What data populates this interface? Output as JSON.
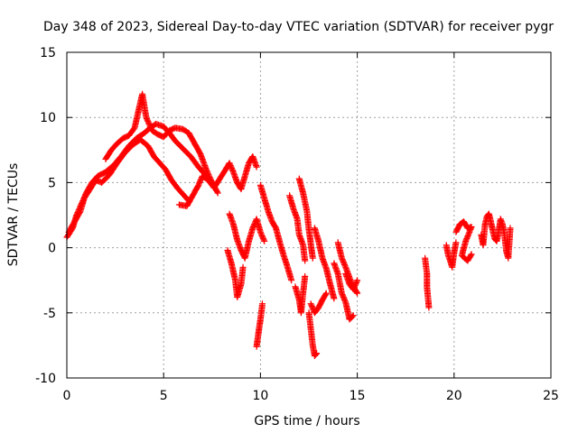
{
  "chart_data": {
    "type": "scatter",
    "title": "Day 348 of 2023, Sidereal Day-to-day VTEC variation (SDTVAR) for receiver pygr",
    "xlabel": "GPS time / hours",
    "ylabel": "SDTVAR / TECUs",
    "xlim": [
      0,
      25
    ],
    "ylim": [
      -10,
      15
    ],
    "xticks": [
      "0",
      "5",
      "10",
      "15",
      "20",
      "25"
    ],
    "yticks": [
      "-10",
      "-5",
      "0",
      "5",
      "10",
      "15"
    ],
    "grid": true,
    "marker": "+",
    "color": "#ff0000",
    "series": [
      {
        "name": "SDTVAR",
        "segments": [
          [
            [
              0.0,
              0.8
            ],
            [
              0.3,
              1.5
            ],
            [
              0.5,
              2.5
            ],
            [
              0.8,
              3.5
            ],
            [
              1.0,
              4.2
            ],
            [
              1.3,
              5.0
            ],
            [
              1.6,
              5.5
            ],
            [
              2.0,
              5.8
            ],
            [
              2.4,
              6.3
            ],
            [
              2.8,
              7.0
            ],
            [
              3.2,
              7.8
            ],
            [
              3.6,
              8.4
            ],
            [
              4.0,
              8.8
            ],
            [
              4.3,
              9.2
            ],
            [
              4.6,
              9.5
            ],
            [
              5.0,
              9.3
            ],
            [
              5.3,
              8.8
            ],
            [
              5.6,
              8.2
            ],
            [
              6.0,
              7.6
            ],
            [
              6.4,
              7.0
            ],
            [
              6.8,
              6.2
            ],
            [
              7.2,
              5.5
            ],
            [
              7.6,
              4.8
            ]
          ],
          [
            [
              0.1,
              1.2
            ],
            [
              0.4,
              2.0
            ],
            [
              0.7,
              2.8
            ],
            [
              0.9,
              3.8
            ],
            [
              1.2,
              4.5
            ],
            [
              1.5,
              5.2
            ],
            [
              1.8,
              5.0
            ],
            [
              2.2,
              5.6
            ],
            [
              2.6,
              6.5
            ],
            [
              3.0,
              7.3
            ],
            [
              3.4,
              7.9
            ],
            [
              3.8,
              8.3
            ],
            [
              4.2,
              7.8
            ],
            [
              4.5,
              7.0
            ],
            [
              4.8,
              6.5
            ],
            [
              5.1,
              6.0
            ],
            [
              5.4,
              5.2
            ],
            [
              5.7,
              4.6
            ],
            [
              6.0,
              4.1
            ],
            [
              6.3,
              3.6
            ]
          ],
          [
            [
              2.0,
              6.8
            ],
            [
              2.3,
              7.5
            ],
            [
              2.6,
              8.0
            ],
            [
              2.9,
              8.4
            ],
            [
              3.2,
              8.6
            ],
            [
              3.5,
              9.2
            ],
            [
              3.7,
              10.5
            ],
            [
              3.9,
              11.8
            ],
            [
              4.1,
              10.0
            ],
            [
              4.4,
              9.0
            ],
            [
              4.7,
              8.7
            ],
            [
              5.0,
              8.5
            ],
            [
              5.3,
              9.0
            ],
            [
              5.6,
              9.2
            ],
            [
              6.0,
              9.1
            ],
            [
              6.3,
              8.8
            ],
            [
              6.6,
              8.0
            ],
            [
              6.9,
              7.2
            ],
            [
              7.2,
              6.0
            ],
            [
              7.5,
              5.0
            ],
            [
              7.8,
              4.2
            ]
          ],
          [
            [
              5.8,
              3.3
            ],
            [
              6.2,
              3.2
            ],
            [
              6.5,
              4.0
            ],
            [
              6.8,
              4.8
            ],
            [
              7.0,
              5.5
            ],
            [
              7.3,
              5.2
            ],
            [
              7.6,
              4.6
            ],
            [
              7.9,
              5.3
            ],
            [
              8.2,
              6.0
            ],
            [
              8.4,
              6.5
            ],
            [
              8.6,
              5.8
            ],
            [
              8.8,
              5.0
            ],
            [
              9.0,
              4.5
            ],
            [
              9.2,
              5.5
            ],
            [
              9.4,
              6.5
            ],
            [
              9.6,
              7.0
            ],
            [
              9.8,
              6.2
            ]
          ],
          [
            [
              8.4,
              2.6
            ],
            [
              8.6,
              1.8
            ],
            [
              8.8,
              0.6
            ],
            [
              9.0,
              -0.2
            ],
            [
              9.2,
              -0.8
            ],
            [
              9.4,
              0.5
            ],
            [
              9.6,
              1.5
            ],
            [
              9.8,
              2.2
            ],
            [
              10.0,
              1.2
            ],
            [
              10.2,
              0.5
            ]
          ],
          [
            [
              8.3,
              -0.2
            ],
            [
              8.5,
              -1.2
            ],
            [
              8.7,
              -2.5
            ],
            [
              8.8,
              -3.8
            ],
            [
              9.0,
              -2.8
            ],
            [
              9.1,
              -1.5
            ]
          ],
          [
            [
              9.8,
              -7.6
            ],
            [
              9.9,
              -6.5
            ],
            [
              10.0,
              -5.5
            ],
            [
              10.1,
              -4.3
            ]
          ],
          [
            [
              10.0,
              4.8
            ],
            [
              10.2,
              3.8
            ],
            [
              10.4,
              2.8
            ],
            [
              10.6,
              2.0
            ],
            [
              10.8,
              1.5
            ],
            [
              11.0,
              0.4
            ],
            [
              11.2,
              -0.6
            ],
            [
              11.4,
              -1.5
            ],
            [
              11.6,
              -2.5
            ]
          ],
          [
            [
              11.5,
              4.0
            ],
            [
              11.7,
              3.0
            ],
            [
              11.9,
              2.2
            ],
            [
              12.0,
              1.0
            ],
            [
              12.2,
              0.2
            ],
            [
              12.3,
              -1.0
            ]
          ],
          [
            [
              11.8,
              -3.0
            ],
            [
              12.0,
              -4.0
            ],
            [
              12.1,
              -5.0
            ],
            [
              12.2,
              -3.5
            ],
            [
              12.3,
              -2.2
            ]
          ],
          [
            [
              12.0,
              5.3
            ],
            [
              12.2,
              4.2
            ],
            [
              12.4,
              2.8
            ],
            [
              12.5,
              1.4
            ],
            [
              12.6,
              0.3
            ],
            [
              12.7,
              -0.8
            ]
          ],
          [
            [
              12.5,
              -5.0
            ],
            [
              12.6,
              -6.2
            ],
            [
              12.7,
              -7.5
            ],
            [
              12.8,
              -8.3
            ],
            [
              12.9,
              -8.1
            ]
          ],
          [
            [
              12.8,
              1.5
            ],
            [
              13.0,
              0.5
            ],
            [
              13.2,
              -0.8
            ],
            [
              13.4,
              -1.6
            ],
            [
              13.6,
              -2.8
            ],
            [
              13.8,
              -3.9
            ]
          ],
          [
            [
              12.6,
              -4.3
            ],
            [
              12.8,
              -5.0
            ],
            [
              13.0,
              -4.6
            ],
            [
              13.2,
              -4.0
            ],
            [
              13.4,
              -3.5
            ]
          ],
          [
            [
              14.0,
              0.4
            ],
            [
              14.2,
              -0.8
            ],
            [
              14.4,
              -1.5
            ],
            [
              14.6,
              -2.3
            ],
            [
              14.8,
              -3.0
            ],
            [
              15.0,
              -3.5
            ]
          ],
          [
            [
              13.8,
              -1.2
            ],
            [
              14.0,
              -2.0
            ],
            [
              14.2,
              -3.5
            ],
            [
              14.4,
              -4.2
            ],
            [
              14.6,
              -5.5
            ],
            [
              14.8,
              -5.2
            ]
          ],
          [
            [
              14.4,
              -2.0
            ],
            [
              14.6,
              -2.8
            ],
            [
              14.8,
              -3.2
            ],
            [
              15.0,
              -2.5
            ]
          ],
          [
            [
              18.5,
              -0.8
            ],
            [
              18.6,
              -2.0
            ],
            [
              18.6,
              -3.0
            ],
            [
              18.7,
              -4.6
            ]
          ],
          [
            [
              19.6,
              0.2
            ],
            [
              19.7,
              -0.6
            ],
            [
              19.8,
              -1.0
            ],
            [
              19.9,
              -1.5
            ],
            [
              20.0,
              -0.4
            ],
            [
              20.1,
              0.4
            ]
          ],
          [
            [
              20.1,
              1.2
            ],
            [
              20.3,
              1.8
            ],
            [
              20.5,
              2.0
            ],
            [
              20.7,
              1.5
            ],
            [
              20.9,
              1.6
            ],
            [
              20.6,
              0.5
            ],
            [
              20.4,
              -0.6
            ],
            [
              20.7,
              -1.0
            ],
            [
              20.9,
              -0.5
            ]
          ],
          [
            [
              21.4,
              1.0
            ],
            [
              21.5,
              0.2
            ],
            [
              21.6,
              1.8
            ],
            [
              21.7,
              2.4
            ],
            [
              21.8,
              2.6
            ],
            [
              21.9,
              2.0
            ],
            [
              22.0,
              1.3
            ],
            [
              22.1,
              0.7
            ],
            [
              22.2,
              0.5
            ],
            [
              22.3,
              1.2
            ],
            [
              22.4,
              2.2
            ],
            [
              22.5,
              1.8
            ],
            [
              22.6,
              1.0
            ],
            [
              22.7,
              -0.3
            ],
            [
              22.8,
              -0.8
            ],
            [
              22.9,
              1.5
            ]
          ]
        ]
      }
    ]
  }
}
